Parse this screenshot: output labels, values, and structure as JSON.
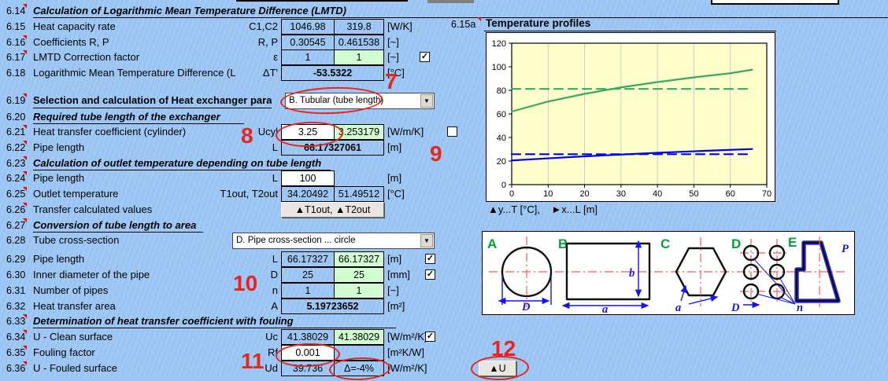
{
  "sheet": {
    "rows": [
      {
        "id": "6.14",
        "type": "section",
        "marker": true,
        "label": "Calculation of Logarithmic Mean Temperature Difference (LMTD)"
      },
      {
        "id": "6.15",
        "type": "data",
        "label": "Heat capacity rate",
        "symbol": "C1,C2",
        "v1": "1046.98",
        "v2": "319.8",
        "unit": "[W/K]"
      },
      {
        "id": "6.16",
        "type": "data",
        "marker": true,
        "label": "Coefficients R, P",
        "symbol": "R, P",
        "v1": "0.30545",
        "v2": "0.461538",
        "unit": "[~]"
      },
      {
        "id": "6.17",
        "type": "data",
        "marker": true,
        "label": "LMTD Correction factor",
        "symbol": "ε",
        "v1": "1",
        "v2": "1",
        "v2_green": true,
        "unit": "[~]",
        "checkbox": "checked"
      },
      {
        "id": "6.18",
        "type": "data",
        "label": "Logarithmic Mean Temperature Difference (L",
        "symbol": "ΔT'",
        "merged": "-53.5322",
        "unit": "[°C]"
      },
      {
        "id": "6.19",
        "type": "dropdown",
        "marker": true,
        "bold": true,
        "label": "Selection and calculation of Heat exchanger para",
        "dd_value": "B. Tubular (tube length)"
      },
      {
        "id": "6.20",
        "type": "section",
        "label": "Required tube length of the exchanger"
      },
      {
        "id": "6.21",
        "type": "data",
        "marker": true,
        "label": "Heat transfer coefficient (cylinder)",
        "symbol": "Ucyl",
        "v1": "3.25",
        "v1_input": true,
        "v2": "3.253179",
        "v2_green": true,
        "unit": "[W/m/K]",
        "checkbox": "unchecked"
      },
      {
        "id": "6.22",
        "type": "data",
        "marker": true,
        "label": "Pipe length",
        "symbol": "L",
        "merged": "66.17327061",
        "unit": "[m]"
      },
      {
        "id": "6.23",
        "type": "section",
        "marker": true,
        "label": "Calculation of outlet temperature depending on tube length"
      },
      {
        "id": "6.24",
        "type": "data",
        "marker": true,
        "label": "Pipe length",
        "symbol": "L",
        "v1": "100",
        "v1_input": true,
        "unit": "[m]"
      },
      {
        "id": "6.25",
        "type": "data",
        "marker": true,
        "label": "Outlet temperature",
        "symbol": "T1out, T2out",
        "v1": "34.20492",
        "v2": "51.49512",
        "unit": "[°C]"
      },
      {
        "id": "6.26",
        "type": "button",
        "marker": true,
        "label": "Transfer calculated values",
        "button": "▲T1out, ▲T2out"
      },
      {
        "id": "6.27",
        "type": "section",
        "marker": true,
        "label": "Conversion of tube length to area"
      },
      {
        "id": "6.28",
        "type": "dropdown",
        "label": "Tube cross-section",
        "dd_value": "D. Pipe cross-section ... circle"
      },
      {
        "id": "6.29",
        "type": "data",
        "label": "Pipe length",
        "symbol": "L",
        "v1": "66.17327",
        "v2": "66.17327",
        "v2_green": true,
        "unit": "[m]",
        "checkbox": "checked"
      },
      {
        "id": "6.30",
        "type": "data",
        "label": "Inner diameter of the pipe",
        "symbol": "D",
        "v1": "25",
        "v2": "25",
        "v2_green": true,
        "unit": "[mm]",
        "checkbox": "checked"
      },
      {
        "id": "6.31",
        "type": "data",
        "label": "Number of pipes",
        "symbol": "n",
        "v1": "1",
        "v2": "1",
        "v2_green": true,
        "unit": "[~]"
      },
      {
        "id": "6.32",
        "type": "data",
        "label": "Heat transfer area",
        "symbol": "A",
        "merged": "5.19723652",
        "unit": "[m²]"
      },
      {
        "id": "6.33",
        "type": "section",
        "marker": true,
        "label": "Determination of heat transfer coefficient with fouling"
      },
      {
        "id": "6.34",
        "type": "data",
        "marker": true,
        "label": "U - Clean surface",
        "symbol": "Uc",
        "v1": "41.38029",
        "v2": "41.38029",
        "v2_green": true,
        "unit": "[W/m²/K]",
        "checkbox": "checked"
      },
      {
        "id": "6.35",
        "type": "data",
        "marker": true,
        "label": "Fouling factor",
        "symbol": "Rf",
        "v1": "0.001",
        "v1_input": true,
        "v2": "",
        "unit": "[m²K/W]"
      },
      {
        "id": "6.36",
        "type": "data",
        "marker": true,
        "label": "U - Fouled surface",
        "symbol": "Ud",
        "v1": "39.736",
        "v2": "Δ=-4%",
        "unit": "[W/m²/K]",
        "button2": "▲U"
      }
    ]
  },
  "chart_header": {
    "id": "6.15a",
    "title": "Temperature profiles",
    "caption": "▲y...T [°C],    ►x...L [m]"
  },
  "chart_data": {
    "type": "line",
    "title": "Temperature profiles",
    "xlabel": "L [m]",
    "ylabel": "T [°C]",
    "xlim": [
      0,
      70
    ],
    "ylim": [
      0,
      120
    ],
    "x_ticks": [
      0,
      10,
      20,
      30,
      40,
      50,
      60,
      70
    ],
    "y_ticks": [
      0,
      20,
      40,
      60,
      80,
      100,
      120
    ],
    "grid": "vertical",
    "legend_position": "none",
    "plot_bg": "#ffffcc",
    "series": [
      {
        "name": "green solid (hot fluid T1 profile)",
        "color": "#3aa860",
        "style": "solid",
        "x": [
          0,
          10,
          20,
          30,
          40,
          50,
          60,
          66
        ],
        "y": [
          62,
          70.5,
          77,
          82.5,
          87,
          91,
          94.5,
          97.5
        ]
      },
      {
        "name": "green dashed (mean)",
        "color": "#3aa860",
        "style": "dashed",
        "x": [
          0,
          66
        ],
        "y": [
          81.2,
          81.2
        ]
      },
      {
        "name": "blue solid (cold fluid T2 profile)",
        "color": "#0000ee",
        "style": "solid",
        "x": [
          0,
          10,
          20,
          30,
          40,
          50,
          60,
          66
        ],
        "y": [
          20.5,
          22.3,
          24,
          25.5,
          27,
          28.3,
          29.5,
          30.2
        ]
      },
      {
        "name": "blue dashed (mean)",
        "color": "#0000ee",
        "style": "dashed",
        "x": [
          0,
          66
        ],
        "y": [
          25.8,
          25.8
        ]
      }
    ]
  },
  "diagram": {
    "sections": [
      "A",
      "B",
      "C",
      "D",
      "E"
    ],
    "dims": {
      "circle_d": "D",
      "rect_a": "a",
      "rect_b": "b",
      "hex_a": "a",
      "bundle_d": "D",
      "bundle_n": "n",
      "poly_p": "P"
    }
  },
  "annotations": {
    "markers": [
      "7",
      "8",
      "9",
      "10",
      "11",
      "12"
    ]
  },
  "colors": {
    "background": "#9cc6f3",
    "cell_green": "#ccffcc",
    "annotation_red": "#e8251a",
    "chart_bg": "#ffffcc",
    "series_green": "#3aa860",
    "series_blue": "#0000ee"
  }
}
